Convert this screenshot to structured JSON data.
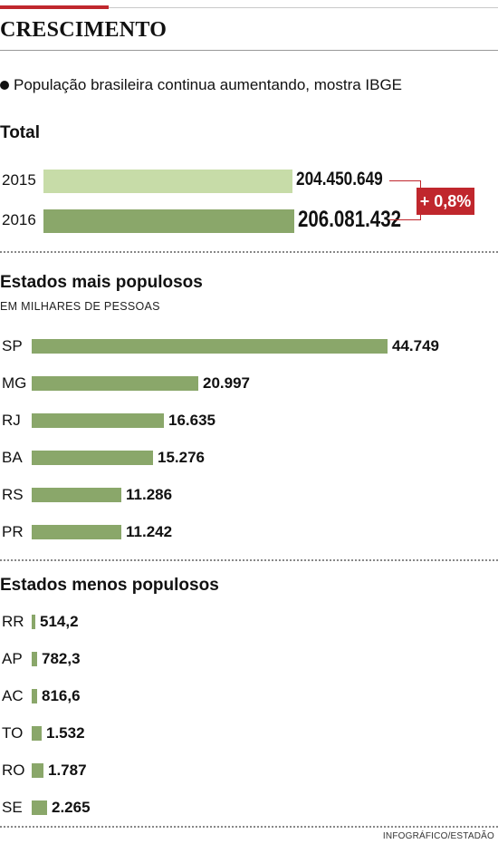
{
  "header": {
    "title": "CRESCIMENTO",
    "subtitle": "População brasileira continua aumentando, mostra IBGE"
  },
  "sections": {
    "total_title": "Total",
    "most_title": "Estados  mais populosos",
    "most_note": "EM MILHARES DE PESSOAS",
    "least_title": "Estados menos populosos"
  },
  "growth_badge": "+ 0,8%",
  "credit": "INFOGRÁFICO/ESTADÃO",
  "colors": {
    "accent_red": "#c0272d",
    "bar_light": "#c7dca8",
    "bar_dark": "#8aa76a",
    "state_bar": "#8aa76a"
  },
  "chart_data": [
    {
      "type": "bar",
      "title": "Total",
      "orientation": "horizontal",
      "categories": [
        "2015",
        "2016"
      ],
      "values": [
        204450649,
        206081432
      ],
      "value_labels": [
        "204.450.649",
        "206.081.432"
      ],
      "annotation": "+ 0,8%"
    },
    {
      "type": "bar",
      "title": "Estados  mais populosos",
      "subtitle": "EM MILHARES DE PESSOAS",
      "orientation": "horizontal",
      "categories": [
        "SP",
        "MG",
        "RJ",
        "BA",
        "RS",
        "PR"
      ],
      "values": [
        44749,
        20997,
        16635,
        15276,
        11286,
        11242
      ],
      "value_labels": [
        "44.749",
        "20.997",
        "16.635",
        "15.276",
        "11.286",
        "11.242"
      ]
    },
    {
      "type": "bar",
      "title": "Estados menos populosos",
      "orientation": "horizontal",
      "categories": [
        "RR",
        "AP",
        "AC",
        "TO",
        "RO",
        "SE"
      ],
      "values": [
        514.2,
        782.3,
        816.6,
        1532,
        1787,
        2265
      ],
      "value_labels": [
        "514,2",
        "782,3",
        "816,6",
        "1.532",
        "1.787",
        "2.265"
      ]
    }
  ]
}
